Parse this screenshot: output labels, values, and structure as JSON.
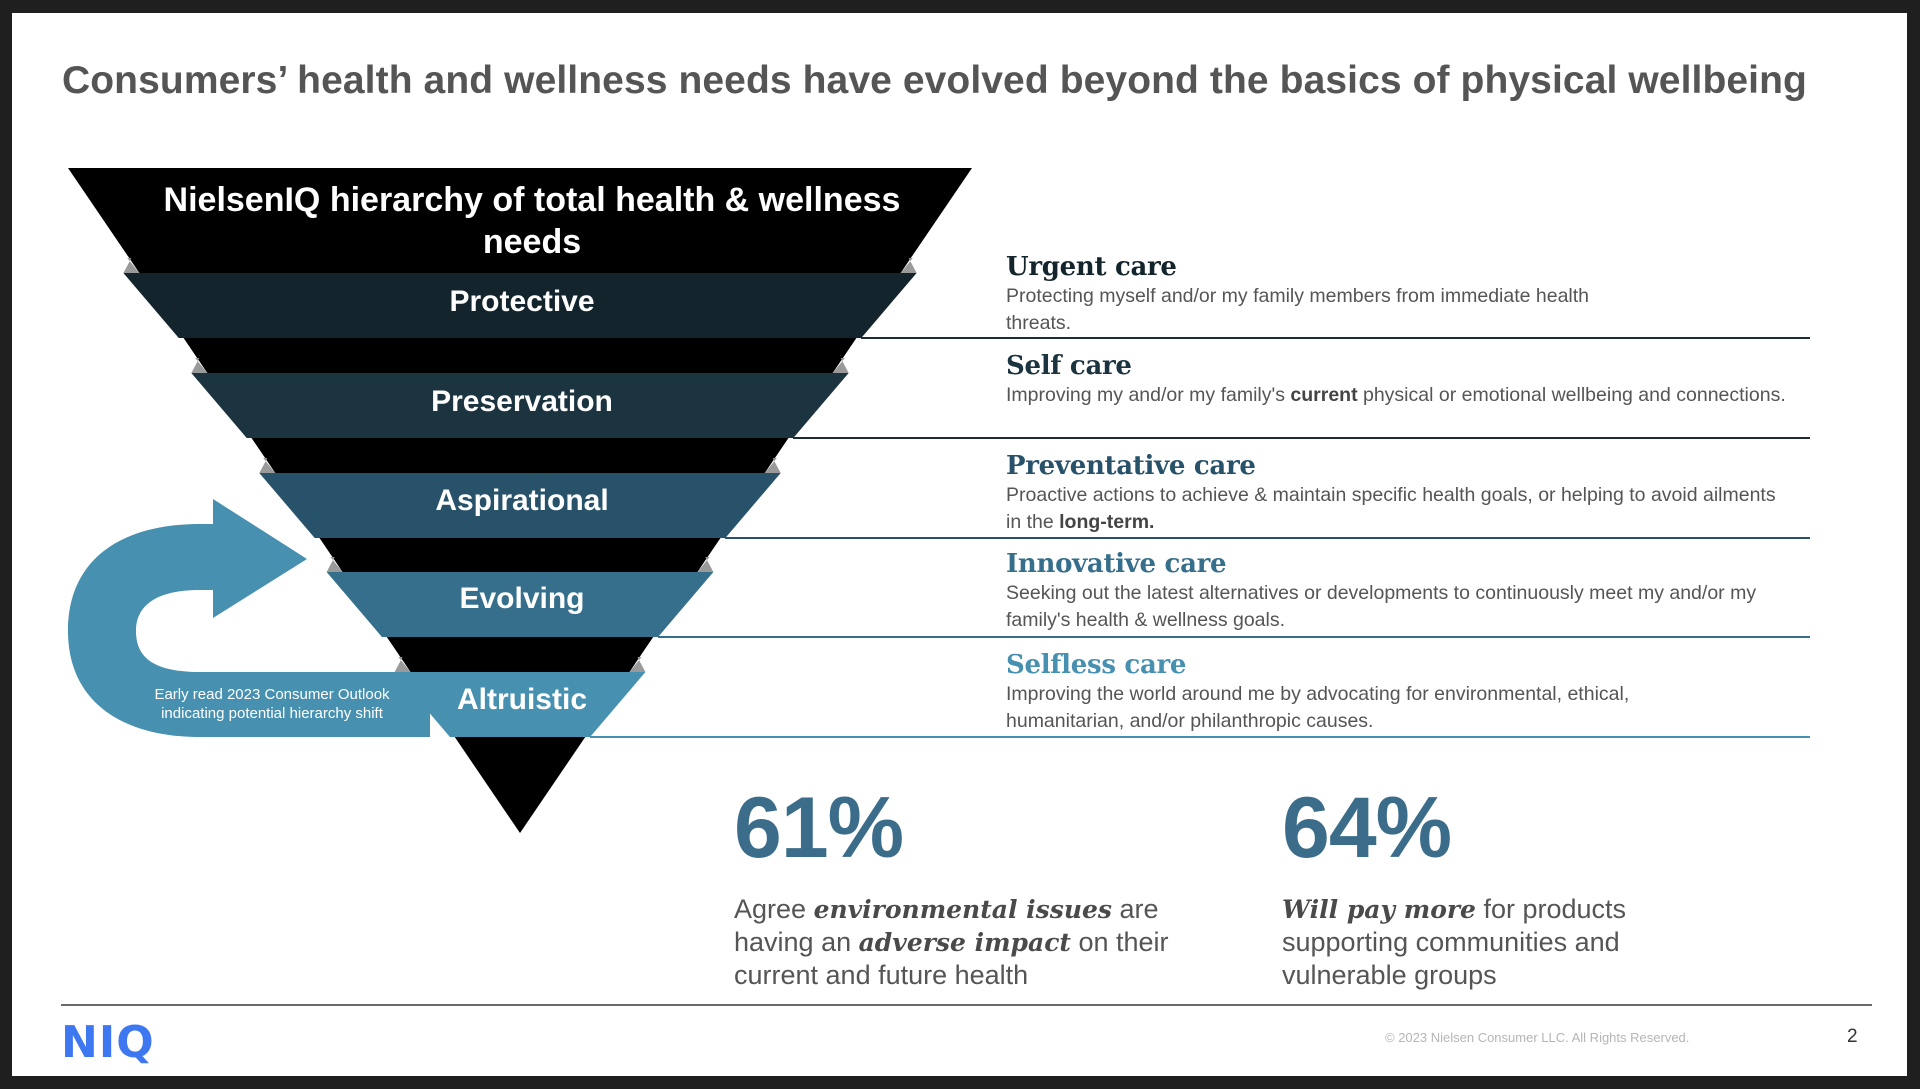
{
  "slide": {
    "title": "Consumers’ health and wellness needs have evolved beyond the basics of physical wellbeing",
    "page_number": "2",
    "copyright": "© 2023 Nielsen Consumer LLC. All Rights Reserved.",
    "logo": "NIQ"
  },
  "pyramid": {
    "heading": "NielsenIQ hierarchy of total health & wellness needs",
    "bands": [
      {
        "label": "Protective",
        "color": "#13242c"
      },
      {
        "label": "Preservation",
        "color": "#1c3340"
      },
      {
        "label": "Aspirational",
        "color": "#27526a"
      },
      {
        "label": "Evolving",
        "color": "#366f8b"
      },
      {
        "label": "Altruistic",
        "color": "#4790b0"
      }
    ],
    "arrow_note": "Early read 2023 Consumer Outlook indicating potential hierarchy shift",
    "arrow_color": "#4790b0"
  },
  "care_levels": [
    {
      "title": "Urgent care",
      "color": "#13242c",
      "desc_before": "Protecting myself and/or my family members from immediate health threats.",
      "desc_bold": "",
      "desc_after": ""
    },
    {
      "title": "Self care",
      "color": "#1c3340",
      "desc_before": "Improving my and/or my family's ",
      "desc_bold": "current",
      "desc_after": " physical or emotional wellbeing and connections."
    },
    {
      "title": "Preventative care",
      "color": "#27526a",
      "desc_before": "Proactive actions to achieve & maintain specific health goals, or helping to avoid ailments in the ",
      "desc_bold": "long-term.",
      "desc_after": ""
    },
    {
      "title": "Innovative care",
      "color": "#366f8b",
      "desc_before": "Seeking out the latest alternatives or developments to continuously meet my and/or my family's health & wellness goals.",
      "desc_bold": "",
      "desc_after": ""
    },
    {
      "title": "Selfless care",
      "color": "#4790b0",
      "desc_before": "Improving the world around me by advocating for environmental, ethical, humanitarian, and/or philanthropic causes.",
      "desc_bold": "",
      "desc_after": ""
    }
  ],
  "stats": [
    {
      "value": "61%",
      "parts": [
        "Agree ",
        "environmental issues",
        " are having an ",
        "adverse impact",
        " on their current and future health"
      ]
    },
    {
      "value": "64%",
      "parts": [
        "",
        "Will pay more",
        " for products supporting communities and vulnerable groups",
        "",
        ""
      ]
    }
  ],
  "colors": {
    "stat": "#3b6d8a",
    "logo": "#3d78f0",
    "title": "#555555"
  }
}
